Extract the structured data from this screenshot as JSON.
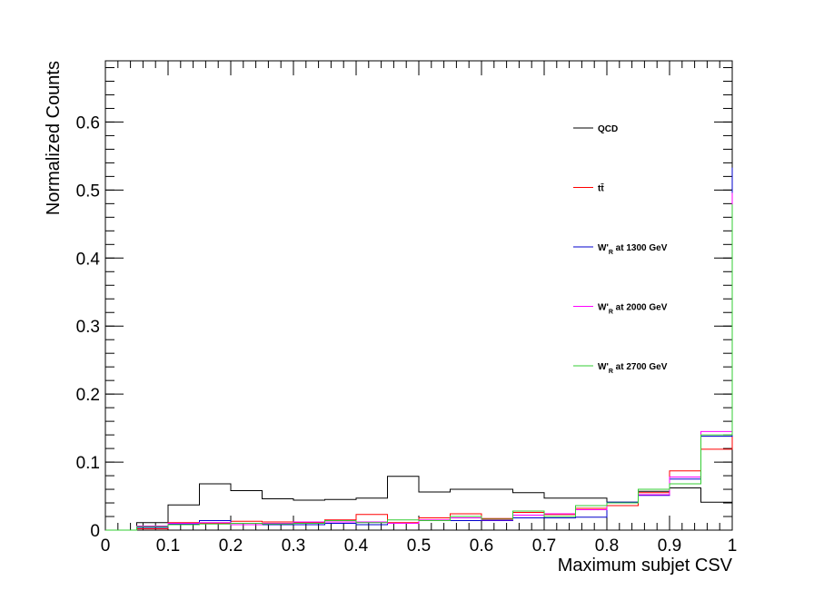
{
  "chart_data": {
    "type": "line",
    "style": "step-histogram",
    "xlabel": "Maximum subjet CSV",
    "ylabel": "Normalized Counts",
    "xlim": [
      0,
      1
    ],
    "ylim": [
      0,
      0.69
    ],
    "xticks": [
      0,
      0.1,
      0.2,
      0.3,
      0.4,
      0.5,
      0.6,
      0.7,
      0.8,
      0.9,
      1
    ],
    "xtick_labels": [
      "0",
      "0.1",
      "0.2",
      "0.3",
      "0.4",
      "0.5",
      "0.6",
      "0.7",
      "0.8",
      "0.9",
      "1"
    ],
    "yticks": [
      0,
      0.1,
      0.2,
      0.3,
      0.4,
      0.5,
      0.6
    ],
    "ytick_labels": [
      "0",
      "0.1",
      "0.2",
      "0.3",
      "0.4",
      "0.5",
      "0.6"
    ],
    "grid": false,
    "legend_position": "top-right",
    "bin_edges": [
      0,
      0.05,
      0.1,
      0.15,
      0.2,
      0.25,
      0.3,
      0.35,
      0.4,
      0.45,
      0.5,
      0.55,
      0.6,
      0.65,
      0.7,
      0.75,
      0.8,
      0.85,
      0.9,
      0.95,
      1.0
    ],
    "series": [
      {
        "name": "QCD",
        "color": "#000000",
        "values": [
          0,
          0.011,
          0.037,
          0.068,
          0.058,
          0.046,
          0.044,
          0.045,
          0.047,
          0.079,
          0.056,
          0.06,
          0.06,
          0.055,
          0.047,
          0.047,
          0.041,
          0.057,
          0.062,
          0.041,
          0.071
        ]
      },
      {
        "name": "tt̄",
        "color": "#ff0000",
        "values": [
          0,
          0.002,
          0.011,
          0.01,
          0.013,
          0.012,
          0.011,
          0.015,
          0.023,
          0.011,
          0.018,
          0.024,
          0.017,
          0.026,
          0.023,
          0.032,
          0.036,
          0.055,
          0.087,
          0.119,
          0.457
        ]
      },
      {
        "name": "W'R at 1300 GeV",
        "color": "#0000cc",
        "values": [
          0,
          0.004,
          0.009,
          0.014,
          0.008,
          0.008,
          0.008,
          0.01,
          0.008,
          0.01,
          0.014,
          0.014,
          0.014,
          0.018,
          0.018,
          0.019,
          0.041,
          0.051,
          0.075,
          0.138,
          0.533
        ]
      },
      {
        "name": "W'R at 2000 GeV",
        "color": "#ff00ff",
        "values": [
          0,
          0.006,
          0.01,
          0.011,
          0.008,
          0.01,
          0.012,
          0.012,
          0.012,
          0.01,
          0.015,
          0.018,
          0.015,
          0.022,
          0.024,
          0.03,
          0.04,
          0.052,
          0.078,
          0.145,
          0.496
        ]
      },
      {
        "name": "W'R at 2700 GeV",
        "color": "#33cc33",
        "values": [
          0,
          0.005,
          0.008,
          0.009,
          0.01,
          0.009,
          0.01,
          0.014,
          0.011,
          0.015,
          0.014,
          0.02,
          0.016,
          0.028,
          0.02,
          0.036,
          0.04,
          0.06,
          0.068,
          0.14,
          0.479
        ]
      }
    ]
  },
  "legend": {
    "entries": [
      {
        "main": "QCD",
        "sub": "",
        "rest": ""
      },
      {
        "main": "tt̄",
        "sub": "",
        "rest": ""
      },
      {
        "main": "W'",
        "sub": "R",
        "rest": " at 1300 GeV"
      },
      {
        "main": "W'",
        "sub": "R",
        "rest": " at 2000 GeV"
      },
      {
        "main": "W'",
        "sub": "R",
        "rest": " at 2700 GeV"
      }
    ]
  }
}
